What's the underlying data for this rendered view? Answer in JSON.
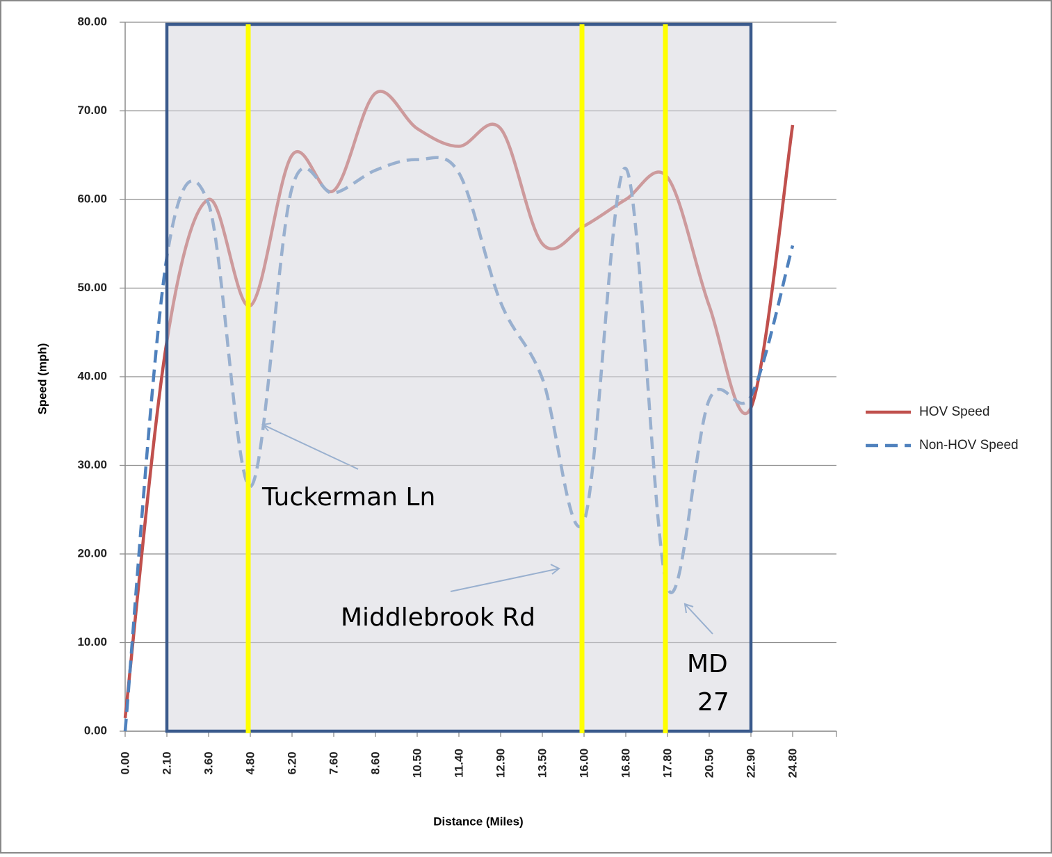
{
  "chart_data": {
    "type": "line",
    "x_label": "Distance (Miles)",
    "y_label": "Speed (mph)",
    "categories": [
      "0.00",
      "2.10",
      "3.60",
      "4.80",
      "6.20",
      "7.60",
      "8.60",
      "10.50",
      "11.40",
      "12.90",
      "13.50",
      "16.00",
      "16.80",
      "17.80",
      "20.50",
      "22.90",
      "24.80"
    ],
    "series": [
      {
        "name": "HOV Speed",
        "color": "#c0504d",
        "dashed": false,
        "values": [
          1.5,
          44,
          60,
          48,
          65,
          61,
          72,
          68,
          66,
          68,
          55,
          57,
          60,
          62.5,
          48,
          36.5,
          68.4
        ]
      },
      {
        "name": "Non-HOV Speed",
        "color": "#4f81bd",
        "dashed": true,
        "values": [
          0,
          53.5,
          59.5,
          27.6,
          61.3,
          60.7,
          63.3,
          64.5,
          63,
          48.4,
          39.8,
          23.7,
          63.5,
          16.2,
          37.4,
          37.8,
          54.8
        ]
      }
    ],
    "ylim": [
      0,
      80
    ],
    "yticks": [
      {
        "value": 0,
        "label": "0.00"
      },
      {
        "value": 10,
        "label": "10.00"
      },
      {
        "value": 20,
        "label": "20.00"
      },
      {
        "value": 30,
        "label": "30.00"
      },
      {
        "value": 40,
        "label": "40.00"
      },
      {
        "value": 50,
        "label": "50.00"
      },
      {
        "value": 60,
        "label": "60.00"
      },
      {
        "value": 70,
        "label": "70.00"
      },
      {
        "value": 80,
        "label": "80.00"
      }
    ],
    "grid": true,
    "legend": "right",
    "shaded_range": [
      "2.10",
      "22.90"
    ],
    "highlight_categories": [
      "4.80",
      "16.00",
      "17.80"
    ],
    "annotations": [
      {
        "lines": [
          "Tuckerman Ln"
        ]
      },
      {
        "lines": [
          "Middlebrook Rd"
        ]
      },
      {
        "lines": [
          "MD",
          "27"
        ]
      }
    ]
  }
}
